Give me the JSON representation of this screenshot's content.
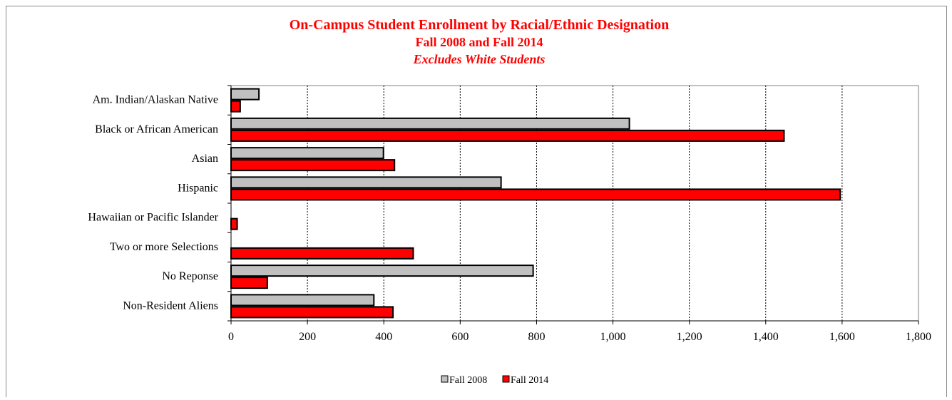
{
  "chart_data": {
    "type": "bar",
    "orientation": "horizontal",
    "title": "On-Campus Student Enrollment by Racial/Ethnic Designation",
    "subtitle": "Fall 2008 and Fall 2014",
    "subtitle2": "Excludes White Students",
    "categories": [
      "Am. Indian/Alaskan Native",
      "Black or African American",
      "Asian",
      "Hispanic",
      "Hawaiian or Pacific Islander",
      "Two or more Selections",
      "No Reponse",
      "Non-Resident Aliens"
    ],
    "series": [
      {
        "name": "Fall 2008",
        "color": "#c0c0c0",
        "values": [
          73,
          1043,
          399,
          707,
          0,
          0,
          791,
          374
        ]
      },
      {
        "name": "Fall 2014",
        "color": "#ff0000",
        "values": [
          24,
          1448,
          428,
          1595,
          16,
          477,
          95,
          424
        ]
      }
    ],
    "xlim": [
      0,
      1800
    ],
    "xticks": [
      "0",
      "200",
      "400",
      "600",
      "800",
      "1,000",
      "1,200",
      "1,400",
      "1,600",
      "1,800"
    ],
    "xtick_values": [
      0,
      200,
      400,
      600,
      800,
      1000,
      1200,
      1400,
      1600,
      1800
    ],
    "grid": "vertical dashed",
    "legend_position": "bottom"
  }
}
